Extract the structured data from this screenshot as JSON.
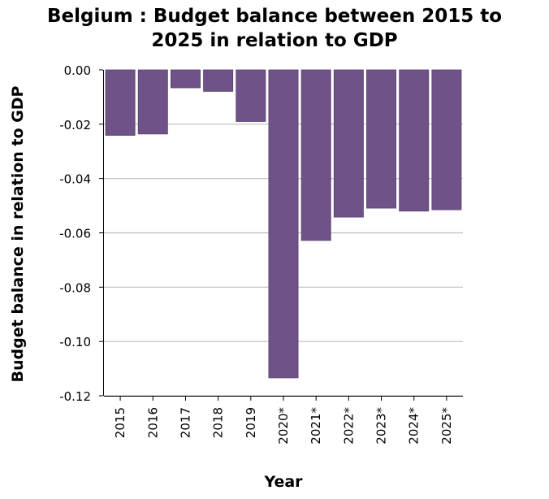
{
  "chart_data": {
    "type": "bar",
    "title": "Belgium : Budget balance between 2015 to 2025 in relation to GDP",
    "title_lines": [
      "Belgium : Budget balance between 2015 to",
      "2025 in relation to GDP"
    ],
    "xlabel": "Year",
    "ylabel": "Budget balance in relation to GDP",
    "categories": [
      "2015",
      "2016",
      "2017",
      "2018",
      "2019",
      "2020*",
      "2021*",
      "2022*",
      "2023*",
      "2024*",
      "2025*"
    ],
    "values": [
      -0.0241,
      -0.0236,
      -0.0066,
      -0.0079,
      -0.019,
      -0.1134,
      -0.0628,
      -0.0542,
      -0.0509,
      -0.052,
      -0.0515
    ],
    "ylim": [
      -0.12,
      0.0
    ],
    "yticks": [
      "0.00",
      "-0.02",
      "-0.04",
      "-0.06",
      "-0.08",
      "-0.10",
      "-0.12"
    ],
    "ytick_values": [
      0.0,
      -0.02,
      -0.04,
      -0.06,
      -0.08,
      -0.1,
      -0.12
    ],
    "grid": "horizontal",
    "legend": "none",
    "colors": {
      "bar": "#6f5288",
      "grid": "#bdbdbd",
      "axis": "#000000",
      "background": "#ffffff"
    }
  }
}
